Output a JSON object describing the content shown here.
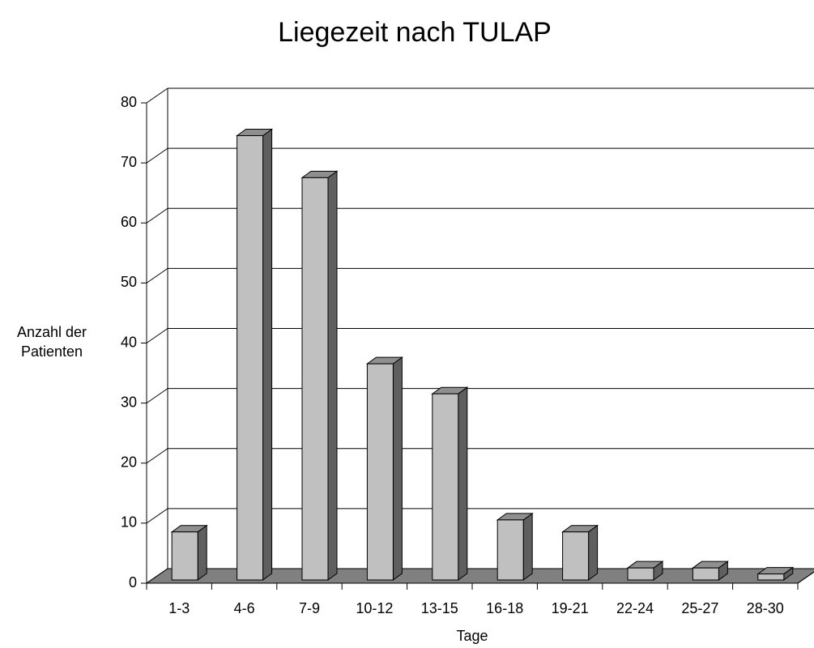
{
  "chart_data": {
    "type": "bar",
    "title": "Liegezeit nach TULAP",
    "xlabel": "Tage",
    "ylabel": "Anzahl der Patienten",
    "categories": [
      "1-3",
      "4-6",
      "7-9",
      "10-12",
      "13-15",
      "16-18",
      "19-21",
      "22-24",
      "25-27",
      "28-30"
    ],
    "values": [
      8,
      74,
      67,
      36,
      31,
      10,
      8,
      2,
      2,
      1
    ],
    "color": "#c0c0c0",
    "ylim": [
      0,
      80
    ],
    "yticks": [
      0,
      10,
      20,
      30,
      40,
      50,
      60,
      70,
      80
    ],
    "grid": true
  }
}
